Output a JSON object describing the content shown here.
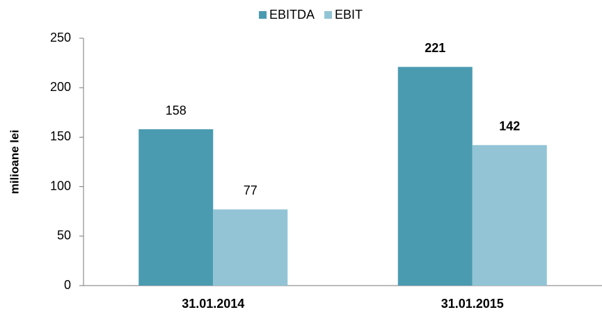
{
  "chart_data": {
    "type": "bar",
    "y_label": "milioane lei",
    "categories": [
      "31.01.2014",
      "31.01.2015"
    ],
    "series": [
      {
        "name": "EBITDA",
        "color": "#4a9bb0",
        "values": [
          158,
          221
        ]
      },
      {
        "name": "EBIT",
        "color": "#92c4d6",
        "values": [
          77,
          142
        ]
      }
    ],
    "ylim": [
      0,
      250
    ],
    "yticks": [
      0,
      50,
      100,
      150,
      200,
      250
    ],
    "grid": false,
    "legend": "top"
  }
}
